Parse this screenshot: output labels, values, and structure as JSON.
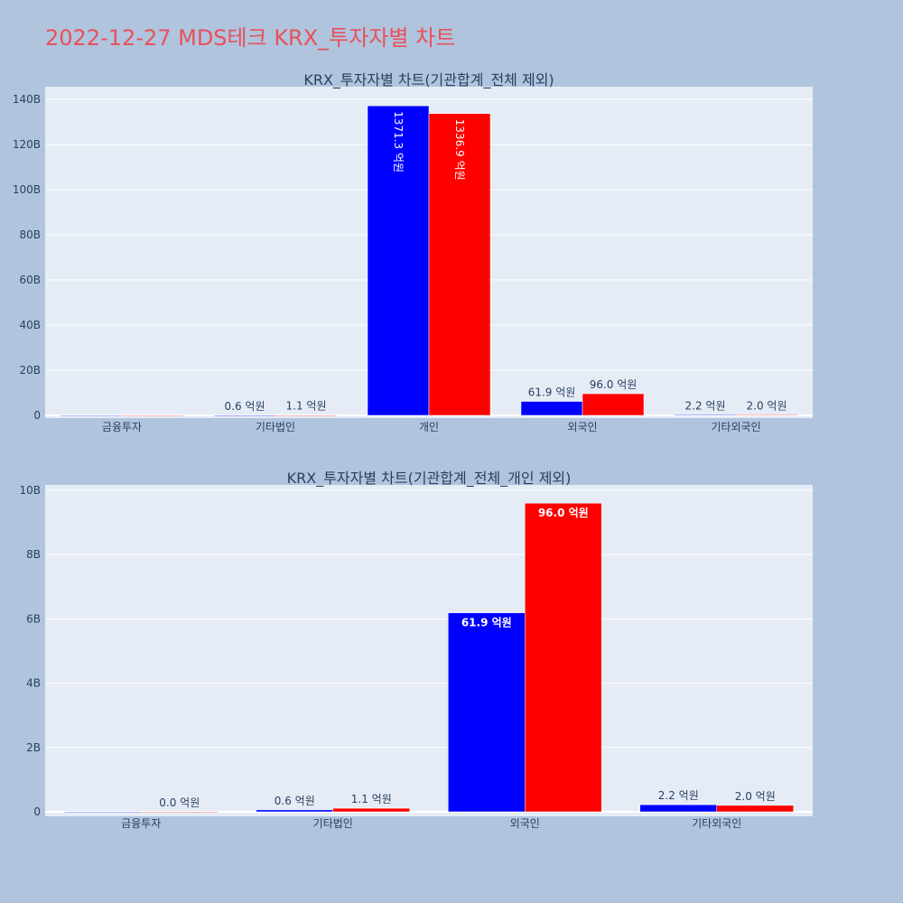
{
  "page_title": "2022-12-27 MDS테크 KRX_투자자별 차트",
  "colors": {
    "buy": "#0000ff",
    "sell": "#ff0000",
    "plot_bg": "#e5ecf6",
    "page_bg": "#b0c4de",
    "title": "#e8515a"
  },
  "chart_data": [
    {
      "type": "bar",
      "title": "KRX_투자자별 차트(기관합계_전체 제외)",
      "categories": [
        "금융투자",
        "기타법인",
        "개인",
        "외국인",
        "기타외국인"
      ],
      "ylim": [
        0,
        140000000000
      ],
      "yticks": [
        0,
        20000000000,
        40000000000,
        60000000000,
        80000000000,
        100000000000,
        120000000000,
        140000000000
      ],
      "ytick_labels": [
        "0",
        "20B",
        "40B",
        "60B",
        "80B",
        "100B",
        "120B",
        "140B"
      ],
      "grid": true,
      "series": [
        {
          "color": "#0000ff",
          "values": [
            0,
            60000000,
            137130000000,
            6190000000,
            220000000
          ],
          "labels": [
            "",
            "0.6 억원",
            "1371.3 억원",
            "61.9 억원",
            "2.2 억원"
          ]
        },
        {
          "color": "#ff0000",
          "values": [
            0,
            110000000,
            133690000000,
            9600000000,
            200000000
          ],
          "labels": [
            "",
            "1.1 억원",
            "1336.9 억원",
            "96.0 억원",
            "2.0 억원"
          ]
        }
      ]
    },
    {
      "type": "bar",
      "title": "KRX_투자자별 차트(기관합계_전체_개인 제외)",
      "categories": [
        "금융투자",
        "기타법인",
        "외국인",
        "기타외국인"
      ],
      "ylim": [
        0,
        10000000000
      ],
      "yticks": [
        0,
        2000000000,
        4000000000,
        6000000000,
        8000000000,
        10000000000
      ],
      "ytick_labels": [
        "0",
        "2B",
        "4B",
        "6B",
        "8B",
        "10B"
      ],
      "grid": true,
      "series": [
        {
          "color": "#0000ff",
          "values": [
            0,
            60000000,
            6190000000,
            220000000
          ],
          "labels": [
            "",
            "0.6 억원",
            "61.9 억원",
            "2.2 억원"
          ]
        },
        {
          "color": "#ff0000",
          "values": [
            0,
            110000000,
            9600000000,
            200000000
          ],
          "labels": [
            "0.0 억원",
            "1.1 억원",
            "96.0 억원",
            "2.0 억원"
          ]
        }
      ]
    }
  ]
}
